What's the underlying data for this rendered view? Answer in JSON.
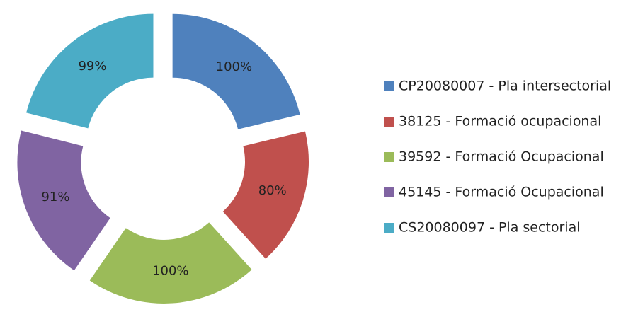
{
  "chart_data": {
    "type": "doughnut",
    "categories": [
      "CP20080007 - Pla intersectorial",
      "38125 - Formació ocupacional",
      "39592 - Formació Ocupacional",
      "45145 - Formació Ocupacional",
      "CS20080097 - Pla sectorial"
    ],
    "values": [
      100,
      80,
      100,
      91,
      99
    ],
    "value_labels": [
      "100%",
      "80%",
      "100%",
      "91%",
      "99%"
    ],
    "colors": [
      "#4f81bd",
      "#c0504d",
      "#9bbb59",
      "#8064a2",
      "#4bacc6"
    ],
    "legend": "right"
  }
}
